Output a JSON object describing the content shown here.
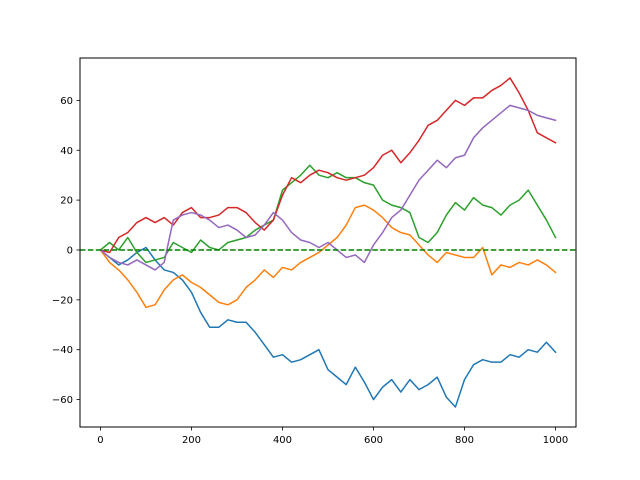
{
  "chart_data": {
    "type": "line",
    "title": "",
    "xlabel": "",
    "ylabel": "",
    "xlim": [
      -45,
      1045
    ],
    "ylim": [
      -71,
      77
    ],
    "x_ticks": [
      0,
      200,
      400,
      600,
      800,
      1000
    ],
    "y_ticks": [
      -60,
      -40,
      -20,
      0,
      20,
      40,
      60
    ],
    "x_tick_labels": [
      "0",
      "200",
      "400",
      "600",
      "800",
      "1000"
    ],
    "y_tick_labels": [
      "−60",
      "−40",
      "−20",
      "0",
      "20",
      "40",
      "60"
    ],
    "grid": false,
    "reference_line": {
      "y": 0,
      "color": "#008000",
      "style": "dashed"
    },
    "series": [
      {
        "color": "#1f77b4",
        "x": [
          0,
          20,
          40,
          60,
          80,
          100,
          120,
          140,
          160,
          180,
          200,
          220,
          240,
          260,
          280,
          300,
          320,
          340,
          360,
          380,
          400,
          420,
          440,
          460,
          480,
          500,
          520,
          540,
          560,
          580,
          600,
          620,
          640,
          660,
          680,
          700,
          720,
          740,
          760,
          780,
          800,
          820,
          840,
          860,
          880,
          900,
          920,
          940,
          960,
          980,
          1000
        ],
        "y": [
          0,
          -3,
          -6,
          -4,
          -1,
          1,
          -4,
          -8,
          -9,
          -12,
          -17,
          -25,
          -31,
          -31,
          -28,
          -29,
          -29,
          -33,
          -38,
          -43,
          -42,
          -45,
          -44,
          -42,
          -40,
          -48,
          -51,
          -54,
          -47,
          -53,
          -60,
          -55,
          -52,
          -57,
          -52,
          -56,
          -54,
          -51,
          -59,
          -63,
          -52,
          -46,
          -44,
          -45,
          -45,
          -42,
          -43,
          -40,
          -41,
          -37,
          -41
        ]
      },
      {
        "color": "#ff7f0e",
        "x": [
          0,
          20,
          40,
          60,
          80,
          100,
          120,
          140,
          160,
          180,
          200,
          220,
          240,
          260,
          280,
          300,
          320,
          340,
          360,
          380,
          400,
          420,
          440,
          460,
          480,
          500,
          520,
          540,
          560,
          580,
          600,
          620,
          640,
          660,
          680,
          700,
          720,
          740,
          760,
          780,
          800,
          820,
          840,
          860,
          880,
          900,
          920,
          940,
          960,
          980,
          1000
        ],
        "y": [
          0,
          -5,
          -8,
          -12,
          -17,
          -23,
          -22,
          -16,
          -12,
          -10,
          -13,
          -15,
          -18,
          -21,
          -22,
          -20,
          -15,
          -12,
          -8,
          -11,
          -7,
          -8,
          -5,
          -3,
          -1,
          2,
          5,
          10,
          17,
          18,
          16,
          13,
          9,
          7,
          6,
          2,
          -2,
          -5,
          -1,
          -2,
          -3,
          -3,
          1,
          -10,
          -6,
          -7,
          -5,
          -6,
          -4,
          -6,
          -9
        ]
      },
      {
        "color": "#2ca02c",
        "x": [
          0,
          20,
          40,
          60,
          80,
          100,
          120,
          140,
          160,
          180,
          200,
          220,
          240,
          260,
          280,
          300,
          320,
          340,
          360,
          380,
          400,
          420,
          440,
          460,
          480,
          500,
          520,
          540,
          560,
          580,
          600,
          620,
          640,
          660,
          680,
          700,
          720,
          740,
          760,
          780,
          800,
          820,
          840,
          860,
          880,
          900,
          920,
          940,
          960,
          980,
          1000
        ],
        "y": [
          0,
          3,
          0,
          5,
          -1,
          -5,
          -4,
          -3,
          3,
          1,
          -1,
          4,
          1,
          0,
          3,
          4,
          5,
          8,
          10,
          12,
          24,
          27,
          30,
          34,
          30,
          29,
          31,
          29,
          29,
          27,
          26,
          20,
          18,
          17,
          15,
          5,
          3,
          7,
          14,
          19,
          16,
          21,
          18,
          17,
          14,
          18,
          20,
          24,
          18,
          12,
          5
        ]
      },
      {
        "color": "#d62728",
        "x": [
          0,
          20,
          40,
          60,
          80,
          100,
          120,
          140,
          160,
          180,
          200,
          220,
          240,
          260,
          280,
          300,
          320,
          340,
          360,
          380,
          400,
          420,
          440,
          460,
          480,
          500,
          520,
          540,
          560,
          580,
          600,
          620,
          640,
          660,
          680,
          700,
          720,
          740,
          760,
          780,
          800,
          820,
          840,
          860,
          880,
          900,
          920,
          940,
          960,
          980,
          1000
        ],
        "y": [
          0,
          -1,
          5,
          7,
          11,
          13,
          11,
          13,
          10,
          15,
          17,
          13,
          13,
          14,
          17,
          17,
          15,
          11,
          8,
          12,
          22,
          29,
          27,
          30,
          32,
          31,
          29,
          28,
          29,
          30,
          33,
          38,
          40,
          35,
          39,
          44,
          50,
          52,
          56,
          60,
          58,
          61,
          61,
          64,
          66,
          69,
          63,
          56,
          47,
          45,
          43
        ]
      },
      {
        "color": "#9467bd",
        "x": [
          0,
          20,
          40,
          60,
          80,
          100,
          120,
          140,
          160,
          180,
          200,
          220,
          240,
          260,
          280,
          300,
          320,
          340,
          360,
          380,
          400,
          420,
          440,
          460,
          480,
          500,
          520,
          540,
          560,
          580,
          600,
          620,
          640,
          660,
          680,
          700,
          720,
          740,
          760,
          780,
          800,
          820,
          840,
          860,
          880,
          900,
          920,
          940,
          960,
          980,
          1000
        ],
        "y": [
          0,
          -3,
          -5,
          -6,
          -4,
          -6,
          -8,
          -5,
          12,
          14,
          15,
          14,
          12,
          9,
          10,
          8,
          5,
          6,
          10,
          15,
          12,
          7,
          4,
          3,
          1,
          3,
          0,
          -3,
          -2,
          -5,
          2,
          7,
          13,
          16,
          22,
          28,
          32,
          36,
          33,
          37,
          38,
          45,
          49,
          52,
          55,
          58,
          57,
          56,
          54,
          53,
          52
        ]
      }
    ]
  }
}
